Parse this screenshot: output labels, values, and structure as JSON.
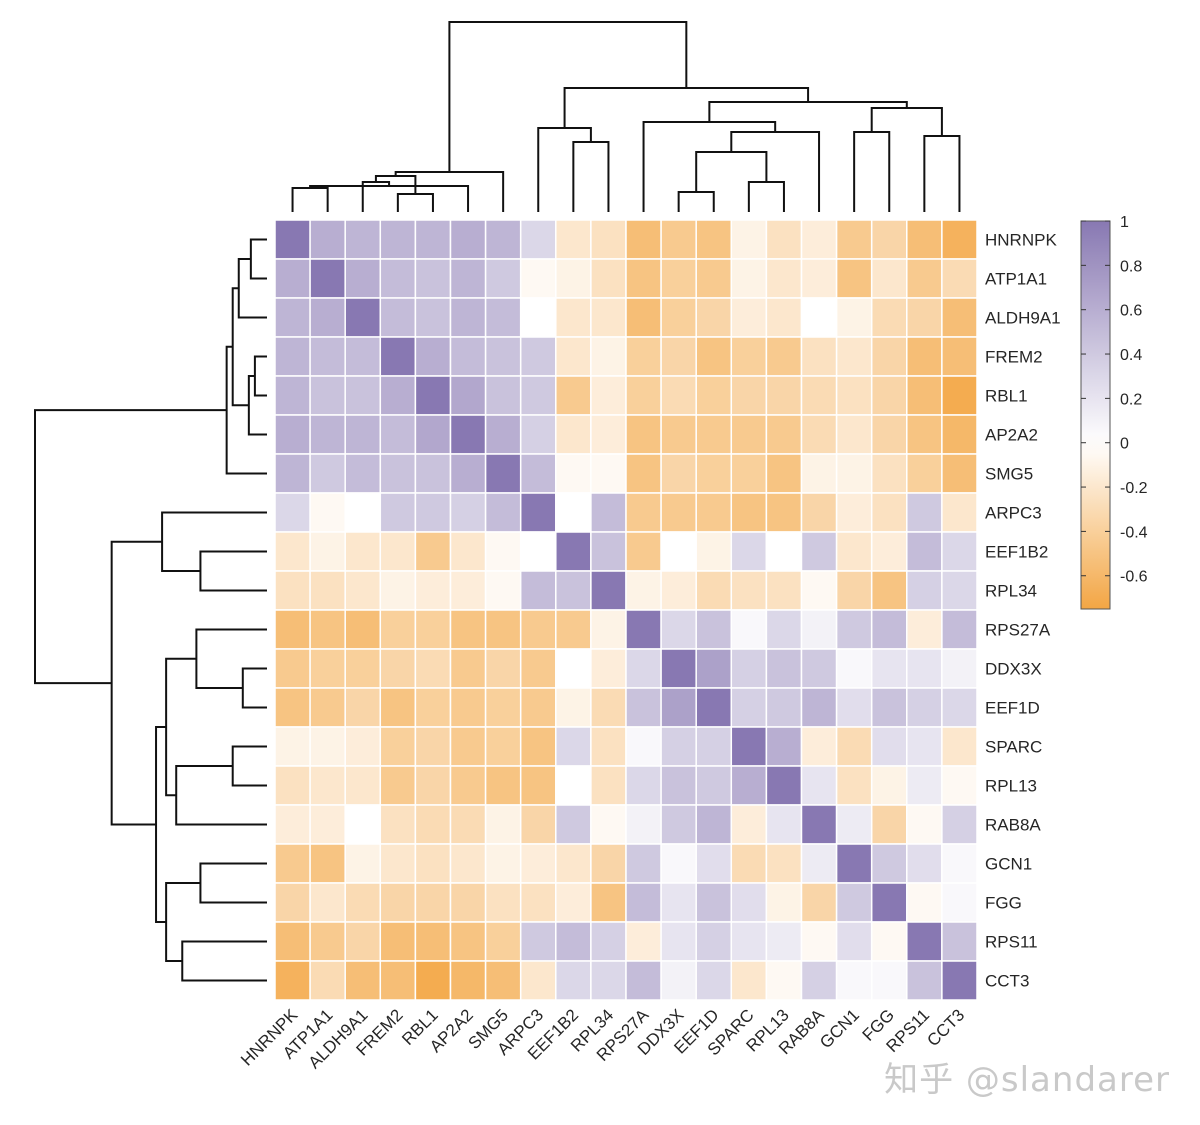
{
  "chart_data": {
    "type": "heatmap",
    "title": "",
    "rows": [
      "HNRNPK",
      "ATP1A1",
      "ALDH9A1",
      "FREM2",
      "RBL1",
      "AP2A2",
      "SMG5",
      "ARPC3",
      "EEF1B2",
      "RPL34",
      "RPS27A",
      "DDX3X",
      "EEF1D",
      "SPARC",
      "RPL13",
      "RAB8A",
      "GCN1",
      "FGG",
      "RPS11",
      "CCT3"
    ],
    "columns": [
      "HNRNPK",
      "ATP1A1",
      "ALDH9A1",
      "FREM2",
      "RBL1",
      "AP2A2",
      "SMG5",
      "ARPC3",
      "EEF1B2",
      "RPL34",
      "RPS27A",
      "DDX3X",
      "EEF1D",
      "SPARC",
      "RPL13",
      "RAB8A",
      "GCN1",
      "FGG",
      "RPS11",
      "CCT3"
    ],
    "values": [
      [
        1.0,
        0.6,
        0.55,
        0.55,
        0.55,
        0.6,
        0.55,
        0.3,
        -0.2,
        -0.25,
        -0.55,
        -0.45,
        -0.5,
        -0.1,
        -0.25,
        -0.15,
        -0.45,
        -0.35,
        -0.55,
        -0.65
      ],
      [
        0.6,
        1.0,
        0.6,
        0.5,
        0.45,
        0.55,
        0.4,
        -0.05,
        -0.1,
        -0.25,
        -0.5,
        -0.4,
        -0.45,
        -0.1,
        -0.2,
        -0.15,
        -0.5,
        -0.2,
        -0.45,
        -0.3
      ],
      [
        0.55,
        0.6,
        1.0,
        0.5,
        0.45,
        0.55,
        0.5,
        0.0,
        -0.2,
        -0.2,
        -0.55,
        -0.4,
        -0.35,
        -0.15,
        -0.2,
        0.0,
        -0.1,
        -0.3,
        -0.35,
        -0.55
      ],
      [
        0.55,
        0.5,
        0.5,
        1.0,
        0.6,
        0.5,
        0.45,
        0.4,
        -0.2,
        -0.1,
        -0.4,
        -0.35,
        -0.5,
        -0.4,
        -0.45,
        -0.25,
        -0.2,
        -0.35,
        -0.55,
        -0.55
      ],
      [
        0.55,
        0.45,
        0.45,
        0.6,
        1.0,
        0.65,
        0.45,
        0.4,
        -0.45,
        -0.15,
        -0.4,
        -0.3,
        -0.4,
        -0.35,
        -0.35,
        -0.3,
        -0.25,
        -0.35,
        -0.55,
        -0.7
      ],
      [
        0.6,
        0.55,
        0.55,
        0.5,
        0.65,
        1.0,
        0.6,
        0.35,
        -0.2,
        -0.15,
        -0.5,
        -0.45,
        -0.45,
        -0.45,
        -0.45,
        -0.3,
        -0.2,
        -0.35,
        -0.5,
        -0.6
      ],
      [
        0.55,
        0.4,
        0.5,
        0.45,
        0.45,
        0.6,
        1.0,
        0.5,
        -0.05,
        -0.05,
        -0.5,
        -0.35,
        -0.4,
        -0.4,
        -0.5,
        -0.1,
        -0.1,
        -0.25,
        -0.4,
        -0.55
      ],
      [
        0.3,
        -0.05,
        0.0,
        0.4,
        0.4,
        0.35,
        0.5,
        1.0,
        0.0,
        0.5,
        -0.45,
        -0.45,
        -0.45,
        -0.5,
        -0.5,
        -0.35,
        -0.15,
        -0.25,
        0.4,
        -0.2
      ],
      [
        -0.2,
        -0.1,
        -0.2,
        -0.2,
        -0.45,
        -0.2,
        -0.05,
        0.0,
        1.0,
        0.45,
        -0.45,
        0.0,
        -0.1,
        0.3,
        0.0,
        0.4,
        -0.2,
        -0.15,
        0.5,
        0.3
      ],
      [
        -0.25,
        -0.25,
        -0.2,
        -0.1,
        -0.15,
        -0.15,
        -0.05,
        0.5,
        0.45,
        1.0,
        -0.1,
        -0.15,
        -0.3,
        -0.25,
        -0.25,
        -0.05,
        -0.35,
        -0.5,
        0.35,
        0.3
      ],
      [
        -0.55,
        -0.5,
        -0.55,
        -0.4,
        -0.4,
        -0.5,
        -0.5,
        -0.45,
        -0.45,
        -0.1,
        1.0,
        0.3,
        0.45,
        0.05,
        0.3,
        0.1,
        0.4,
        0.5,
        -0.15,
        0.5
      ],
      [
        -0.45,
        -0.4,
        -0.4,
        -0.35,
        -0.3,
        -0.45,
        -0.35,
        -0.45,
        0.0,
        -0.15,
        0.3,
        1.0,
        0.7,
        0.35,
        0.45,
        0.4,
        0.05,
        0.2,
        0.2,
        0.1
      ],
      [
        -0.5,
        -0.45,
        -0.35,
        -0.5,
        -0.4,
        -0.45,
        -0.4,
        -0.45,
        -0.1,
        -0.3,
        0.45,
        0.7,
        1.0,
        0.35,
        0.4,
        0.55,
        0.25,
        0.45,
        0.35,
        0.3
      ],
      [
        -0.1,
        -0.1,
        -0.15,
        -0.4,
        -0.35,
        -0.45,
        -0.4,
        -0.5,
        0.3,
        -0.25,
        0.05,
        0.35,
        0.35,
        1.0,
        0.6,
        -0.15,
        -0.3,
        0.25,
        0.2,
        -0.2
      ],
      [
        -0.25,
        -0.2,
        -0.2,
        -0.45,
        -0.35,
        -0.45,
        -0.5,
        -0.5,
        0.0,
        -0.25,
        0.3,
        0.45,
        0.4,
        0.6,
        1.0,
        0.2,
        -0.25,
        -0.1,
        0.15,
        -0.05
      ],
      [
        -0.15,
        -0.15,
        0.0,
        -0.25,
        -0.3,
        -0.3,
        -0.1,
        -0.35,
        0.4,
        -0.05,
        0.1,
        0.4,
        0.55,
        -0.15,
        0.2,
        1.0,
        0.15,
        -0.35,
        -0.05,
        0.35
      ],
      [
        -0.45,
        -0.5,
        -0.1,
        -0.2,
        -0.25,
        -0.2,
        -0.1,
        -0.15,
        -0.2,
        -0.35,
        0.4,
        0.05,
        0.25,
        -0.3,
        -0.25,
        0.15,
        1.0,
        0.4,
        0.25,
        0.05
      ],
      [
        -0.35,
        -0.2,
        -0.3,
        -0.35,
        -0.35,
        -0.35,
        -0.25,
        -0.25,
        -0.15,
        -0.5,
        0.5,
        0.2,
        0.45,
        0.25,
        -0.1,
        -0.35,
        0.4,
        1.0,
        -0.05,
        0.05
      ],
      [
        -0.55,
        -0.45,
        -0.35,
        -0.55,
        -0.55,
        -0.5,
        -0.4,
        0.4,
        0.5,
        0.35,
        -0.15,
        0.2,
        0.35,
        0.2,
        0.15,
        -0.05,
        0.25,
        -0.05,
        1.0,
        0.45
      ],
      [
        -0.65,
        -0.3,
        -0.55,
        -0.55,
        -0.7,
        -0.6,
        -0.55,
        -0.2,
        0.3,
        0.3,
        0.5,
        0.1,
        0.3,
        -0.2,
        -0.05,
        0.35,
        0.05,
        0.05,
        0.45,
        1.0
      ]
    ],
    "colorbar": {
      "min": -0.75,
      "max": 1.0,
      "ticks": [
        1,
        0.8,
        0.6,
        0.4,
        0.2,
        0,
        -0.2,
        -0.4,
        -0.6
      ],
      "tick_labels": [
        "1",
        "0.8",
        "0.6",
        "0.4",
        "0.2",
        "0",
        "-0.2",
        "-0.4",
        "-0.6"
      ],
      "color_high": "#8878b2",
      "color_mid": "#ffffff",
      "color_low": "#f3a644"
    },
    "dendrogram_columns": {
      "leaf_order": [
        "HNRNPK",
        "ATP1A1",
        "ALDH9A1",
        "FREM2",
        "RBL1",
        "AP2A2",
        "SMG5",
        "ARPC3",
        "EEF1B2",
        "RPL34",
        "RPS27A",
        "DDX3X",
        "EEF1D",
        "SPARC",
        "RPL13",
        "RAB8A",
        "GCN1",
        "FGG",
        "RPS11",
        "CCT3"
      ],
      "merges": [
        [
          0,
          1,
          0.12
        ],
        [
          3,
          4,
          0.09
        ],
        [
          20,
          5,
          0.13
        ],
        [
          2,
          22,
          0.15
        ],
        [
          21,
          23,
          0.18
        ],
        [
          24,
          6,
          0.2
        ],
        [
          8,
          9,
          0.35
        ],
        [
          7,
          26,
          0.42
        ],
        [
          11,
          12,
          0.1
        ],
        [
          13,
          14,
          0.15
        ],
        [
          28,
          29,
          0.3
        ],
        [
          30,
          15,
          0.4
        ],
        [
          10,
          31,
          0.45
        ],
        [
          18,
          19,
          0.38
        ],
        [
          16,
          17,
          0.4
        ],
        [
          33,
          34,
          0.52
        ],
        [
          32,
          35,
          0.55
        ],
        [
          27,
          36,
          0.62
        ],
        [
          25,
          37,
          0.95
        ]
      ]
    },
    "dendrogram_rows": {
      "leaf_order": [
        "HNRNPK",
        "ATP1A1",
        "ALDH9A1",
        "FREM2",
        "RBL1",
        "AP2A2",
        "SMG5",
        "ARPC3",
        "EEF1B2",
        "RPL34",
        "RPS27A",
        "DDX3X",
        "EEF1D",
        "SPARC",
        "RPL13",
        "RAB8A",
        "GCN1",
        "FGG",
        "RPS11",
        "CCT3"
      ],
      "merges": [
        [
          0,
          1,
          0.08
        ],
        [
          20,
          2,
          0.14
        ],
        [
          3,
          4,
          0.06
        ],
        [
          22,
          5,
          0.09
        ],
        [
          21,
          23,
          0.17
        ],
        [
          24,
          6,
          0.2
        ],
        [
          8,
          9,
          0.33
        ],
        [
          7,
          26,
          0.52
        ],
        [
          11,
          12,
          0.12
        ],
        [
          10,
          28,
          0.35
        ],
        [
          13,
          14,
          0.17
        ],
        [
          30,
          15,
          0.45
        ],
        [
          29,
          31,
          0.5
        ],
        [
          16,
          17,
          0.33
        ],
        [
          18,
          19,
          0.42
        ],
        [
          33,
          34,
          0.5
        ],
        [
          32,
          35,
          0.55
        ],
        [
          27,
          36,
          0.77
        ],
        [
          25,
          37,
          1.15
        ]
      ]
    }
  },
  "watermark": "知乎 @slandarer"
}
